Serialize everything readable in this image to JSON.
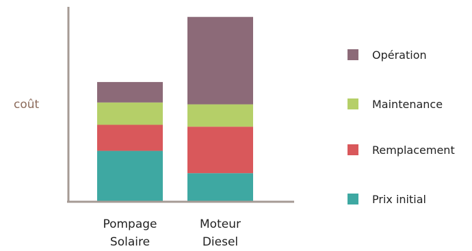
{
  "chart_data": {
    "type": "bar",
    "stacked": true,
    "categories": [
      [
        "Pompage",
        "Solaire"
      ],
      [
        "Moteur",
        "Diesel"
      ]
    ],
    "ylabel": "coût",
    "ylim": [
      0,
      100
    ],
    "grid": false,
    "legend_position": "right",
    "series": [
      {
        "name": "Prix initial",
        "color": "#3ea8a2",
        "values": [
          27,
          15
        ]
      },
      {
        "name": "Remplacement",
        "color": "#d9585b",
        "values": [
          14,
          25
        ]
      },
      {
        "name": "Maintenance",
        "color": "#b5cf68",
        "values": [
          12,
          12
        ]
      },
      {
        "name": "Opération",
        "color": "#8c6a78",
        "values": [
          11,
          47
        ]
      }
    ],
    "axis_color": "#a59a94"
  }
}
